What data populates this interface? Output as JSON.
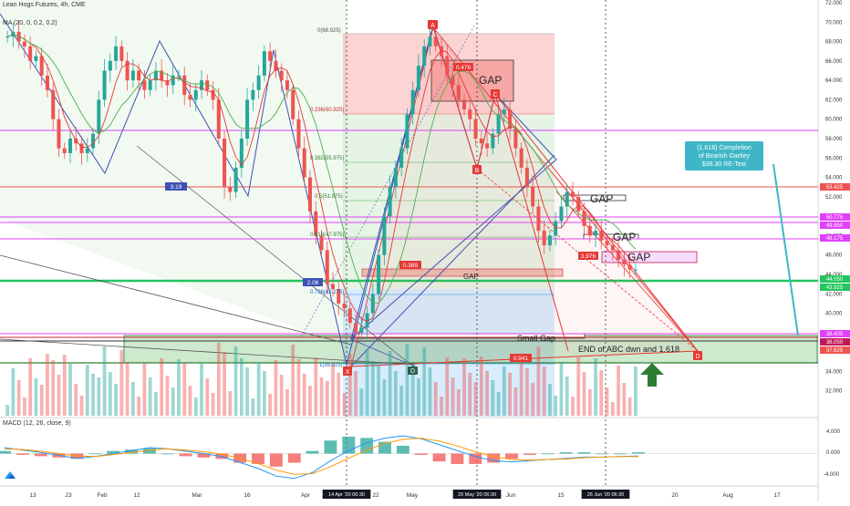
{
  "header": {
    "symbol_line": "Lean Hogs Futures, 4h, CME",
    "ma_line": "MA (20, 0, 0.2, 0.2)",
    "macd_line": "MACD (12, 26, close, 9)"
  },
  "colors": {
    "up": "#26a69a",
    "down": "#ef5350",
    "pattern_blue": "#3f51b5",
    "pattern_red": "#e53935",
    "green_zone": "#4caf50",
    "magenta": "#e040fb",
    "teal_callout": "#3fb6c7",
    "macd_line": "#2196f3",
    "signal_line": "#ff9800"
  },
  "chart_data": [
    {
      "type": "line",
      "title": "Lean Hogs Futures, 4h, CME",
      "ylim": [
        30,
        72
      ],
      "y_ticks": [
        "72.000",
        "70.000",
        "68.000",
        "66.000",
        "64.000",
        "62.000",
        "60.000",
        "58.000",
        "56.000",
        "54.000",
        "52.000",
        "50.000",
        "48.000",
        "46.000",
        "44.000",
        "42.000",
        "40.000",
        "38.000",
        "36.000",
        "34.000",
        "32.000"
      ],
      "x_ticks": [
        "13",
        "23",
        "Feb",
        "12",
        "Mar",
        "16",
        "Apr",
        "14 Apr '20  06:30",
        "22",
        "May",
        "20 May '20  06:30",
        "Jun",
        "15",
        "26 Jun '20  06:30",
        "20",
        "Aug",
        "17"
      ],
      "series": [
        {
          "values": [
            68.5,
            69.0,
            68.0,
            67.5,
            66.0,
            66.5,
            64.5,
            63.0,
            60.0,
            57.0,
            56.5,
            58.0,
            57.5,
            56.5,
            57.0,
            58.5,
            62.0,
            65.0,
            66.0,
            67.5,
            66.0,
            64.0,
            65.0,
            64.0,
            63.0,
            64.0,
            65.0,
            64.0,
            63.5,
            64.5,
            64.5,
            62.5,
            62.0,
            63.0,
            64.0,
            63.0,
            62.0,
            58.0,
            53.0,
            52.5,
            55.0,
            58.0,
            62.0,
            63.0,
            64.5,
            67.0,
            66.0,
            65.0,
            64.0,
            63.0,
            60.0,
            57.0,
            54.0,
            50.5,
            48.0,
            46.5,
            43.0,
            42.5,
            41.0,
            40.5,
            39.0,
            38.0,
            38.5,
            40.0,
            42.0,
            46.0,
            50.0,
            53.0,
            55.0,
            57.0,
            60.5,
            63.0,
            65.5,
            67.5,
            68.5,
            67.5,
            66.5,
            64.5,
            63.5,
            62.0,
            61.0,
            60.0,
            58.0,
            57.5,
            57.0,
            58.5,
            60.5,
            61.0,
            59.0,
            57.0,
            55.0,
            53.0,
            51.0,
            48.5,
            47.0,
            48.0,
            49.5,
            51.0,
            52.5,
            52.0,
            50.5,
            49.0,
            48.0,
            48.5,
            47.5,
            47.0,
            46.5,
            45.5,
            45.0,
            44.5,
            44.5
          ]
        }
      ],
      "horizontal_levels": [
        "53.425",
        "50.775",
        "49.850",
        "48.175",
        "44.050",
        "43.925",
        "38.400",
        "38.050",
        "37.825"
      ],
      "fib_labels": [
        "0(68.925)",
        "0.236(60.925)",
        "0.382(55.975)",
        "0.5(51.975)",
        "0.618(47.975)",
        "0.786(42.275)",
        "1(35.025)"
      ],
      "pattern_points": [
        "X",
        "A",
        "B",
        "C",
        "D"
      ],
      "ratios": [
        "0.476",
        "3.976",
        "0.389",
        "0.941",
        "3.19",
        "2.06"
      ],
      "annotations": [
        "GAP",
        "GAP",
        "GAP",
        "GAP",
        "GAP",
        "Small Gap",
        "END of ABC dwn and 1.618"
      ],
      "callout_lines": [
        "(1.618) Completion",
        "of Bearish Gartley",
        "$38.30  RE-Test"
      ]
    },
    {
      "type": "line",
      "title": "MACD (12, 26, close, 9)",
      "ylim": [
        -5,
        5
      ],
      "y_ticks": [
        "4.000",
        "0.000",
        "-4.000"
      ],
      "series": [
        {
          "name": "",
          "values": [
            1.0,
            0.6,
            0.2,
            -0.3,
            -0.8,
            -0.5,
            0.0,
            0.5,
            1.0,
            0.8,
            0.4,
            0.0,
            -0.5,
            -1.5,
            -2.5,
            -3.8,
            -4.2,
            -3.2,
            -1.2,
            0.5,
            1.8,
            2.6,
            3.0,
            2.5,
            1.5,
            0.5,
            -0.5,
            -1.2,
            -1.4,
            -1.2,
            -1.0,
            -0.8,
            -0.6,
            -0.6,
            -0.5,
            -0.4
          ]
        },
        {
          "name": "",
          "values": [
            0.8,
            0.7,
            0.4,
            0.0,
            -0.4,
            -0.5,
            -0.2,
            0.2,
            0.6,
            0.8,
            0.6,
            0.3,
            -0.1,
            -0.8,
            -1.7,
            -2.8,
            -3.5,
            -3.4,
            -2.2,
            -0.8,
            0.6,
            1.7,
            2.4,
            2.6,
            2.1,
            1.3,
            0.3,
            -0.5,
            -1.0,
            -1.1,
            -1.0,
            -0.9,
            -0.7,
            -0.6,
            -0.5,
            -0.5
          ]
        }
      ]
    }
  ]
}
